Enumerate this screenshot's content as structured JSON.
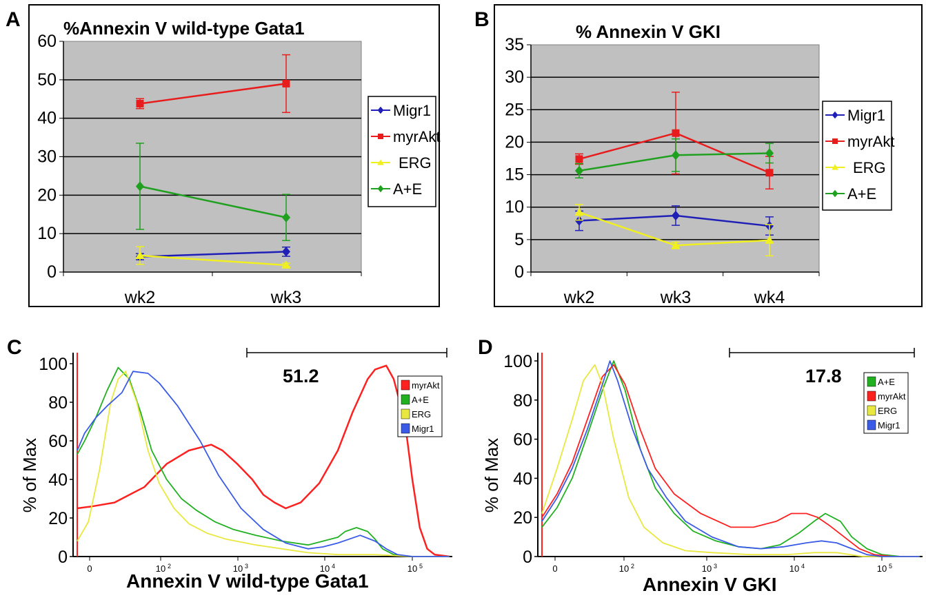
{
  "panel_labels": [
    "A",
    "B",
    "C",
    "D"
  ],
  "chart_data": [
    {
      "panel": "A",
      "type": "line",
      "title": "%Annexin V wild-type Gata1",
      "categories": [
        "wk2",
        "wk3"
      ],
      "ylim": [
        0,
        60
      ],
      "yticks": [
        "0",
        "10",
        "20",
        "30",
        "40",
        "50",
        "60"
      ],
      "grid": true,
      "plot_background": "#c0c0c0",
      "legend_position": "right",
      "series": [
        {
          "name": "Migr1",
          "color": "#1f1fb8",
          "marker": "diamond",
          "values": [
            4,
            5.3
          ],
          "err": [
            0.8,
            1.2
          ]
        },
        {
          "name": "myrAkt",
          "color": "#e81c1c",
          "marker": "square",
          "values": [
            43.8,
            49
          ],
          "err": [
            1.3,
            7.5
          ]
        },
        {
          "name": "ERG",
          "color": "#f0f020",
          "marker": "triangle",
          "values": [
            4.3,
            1.8
          ],
          "err": [
            2.3,
            0.5
          ]
        },
        {
          "name": "A+E",
          "color": "#1fa01f",
          "marker": "diamond",
          "values": [
            22.3,
            14.2
          ],
          "err": [
            11.2,
            6
          ]
        }
      ]
    },
    {
      "panel": "B",
      "type": "line",
      "title": "% Annexin V GKI",
      "categories": [
        "wk2",
        "wk3",
        "wk4"
      ],
      "ylim": [
        0,
        35
      ],
      "yticks": [
        "0",
        "5",
        "10",
        "15",
        "20",
        "25",
        "30",
        "35"
      ],
      "grid": true,
      "plot_background": "#c0c0c0",
      "legend_position": "right",
      "series": [
        {
          "name": "Migr1",
          "color": "#1f1fb8",
          "marker": "diamond",
          "values": [
            7.9,
            8.7,
            7.1
          ],
          "err": [
            1.5,
            1.5,
            1.4
          ]
        },
        {
          "name": "myrAkt",
          "color": "#e81c1c",
          "marker": "square",
          "values": [
            17.4,
            21.4,
            15.3
          ],
          "err": [
            0.8,
            6.3,
            2.5
          ]
        },
        {
          "name": "ERG",
          "color": "#f0f020",
          "marker": "triangle",
          "values": [
            9.2,
            4.1,
            4.9
          ],
          "err": [
            1.2,
            0.5,
            2.4
          ]
        },
        {
          "name": "A+E",
          "color": "#1fa01f",
          "marker": "diamond",
          "values": [
            15.6,
            18,
            18.3
          ],
          "err": [
            1.1,
            2.5,
            1.5
          ]
        }
      ]
    },
    {
      "panel": "C",
      "type": "area",
      "xlabel": "Annexin V wild-type Gata1",
      "ylabel": "% of Max",
      "ylim": [
        0,
        100
      ],
      "yticks": [
        "0",
        "20",
        "40",
        "60",
        "80",
        "100"
      ],
      "x_scale": "biexponential",
      "xticks": [
        {
          "base": "0",
          "exp": ""
        },
        {
          "base": "10",
          "exp": "2"
        },
        {
          "base": "10",
          "exp": "3"
        },
        {
          "base": "10",
          "exp": "4"
        },
        {
          "base": "10",
          "exp": "5"
        }
      ],
      "gate_value": "51.2",
      "legend_position": "top-right",
      "legend": [
        {
          "name": "myrAkt",
          "color": "#ff2020"
        },
        {
          "name": "A+E",
          "color": "#20b020"
        },
        {
          "name": "ERG",
          "color": "#e8e840"
        },
        {
          "name": "Migr1",
          "color": "#3a5ae8"
        }
      ],
      "series": [
        {
          "name": "myrAkt",
          "color": "#ff2020",
          "x": [
            0.0,
            0.04,
            0.1,
            0.14,
            0.18,
            0.2,
            0.24,
            0.3,
            0.36,
            0.39,
            0.43,
            0.47,
            0.5,
            0.53,
            0.56,
            0.6,
            0.65,
            0.7,
            0.74,
            0.78,
            0.8,
            0.83,
            0.85,
            0.88,
            0.9,
            0.92,
            0.94,
            0.96,
            1.0
          ],
          "y": [
            25,
            26,
            28,
            32,
            36,
            40,
            48,
            55,
            58,
            55,
            48,
            40,
            32,
            28,
            25,
            28,
            38,
            55,
            75,
            92,
            97,
            99,
            92,
            70,
            40,
            15,
            4,
            1,
            0
          ]
        },
        {
          "name": "A+E",
          "color": "#20b020",
          "x": [
            0.0,
            0.02,
            0.05,
            0.08,
            0.11,
            0.14,
            0.17,
            0.2,
            0.24,
            0.28,
            0.32,
            0.37,
            0.42,
            0.48,
            0.55,
            0.62,
            0.66,
            0.7,
            0.72,
            0.75,
            0.78,
            0.8,
            0.82,
            0.85,
            0.9,
            1.0
          ],
          "y": [
            53,
            60,
            72,
            86,
            98,
            92,
            75,
            55,
            40,
            30,
            24,
            18,
            14,
            11,
            8,
            6,
            8,
            10,
            13,
            15,
            13,
            9,
            4,
            1,
            0,
            0
          ]
        },
        {
          "name": "ERG",
          "color": "#e8e840",
          "x": [
            0.0,
            0.03,
            0.06,
            0.09,
            0.11,
            0.13,
            0.16,
            0.19,
            0.22,
            0.26,
            0.3,
            0.35,
            0.4,
            0.48,
            0.55,
            0.62,
            0.7,
            0.8,
            0.9,
            1.0
          ],
          "y": [
            8,
            18,
            45,
            80,
            92,
            96,
            80,
            55,
            38,
            25,
            17,
            12,
            9,
            6,
            4,
            2,
            1,
            1,
            0,
            0
          ]
        },
        {
          "name": "Migr1",
          "color": "#3a5ae8",
          "x": [
            0.0,
            0.02,
            0.05,
            0.08,
            0.12,
            0.15,
            0.19,
            0.22,
            0.27,
            0.33,
            0.38,
            0.44,
            0.5,
            0.56,
            0.62,
            0.66,
            0.7,
            0.73,
            0.76,
            0.8,
            0.83,
            0.86,
            0.9,
            1.0
          ],
          "y": [
            55,
            64,
            72,
            78,
            85,
            96,
            95,
            90,
            78,
            60,
            42,
            25,
            14,
            7,
            4,
            5,
            7,
            9,
            11,
            8,
            4,
            1,
            0,
            0
          ]
        }
      ]
    },
    {
      "panel": "D",
      "type": "area",
      "xlabel": "Annexin V GKI",
      "ylabel": "% of Max",
      "ylim": [
        0,
        100
      ],
      "yticks": [
        "0",
        "20",
        "40",
        "60",
        "80",
        "100"
      ],
      "x_scale": "biexponential",
      "xticks": [
        {
          "base": "0",
          "exp": ""
        },
        {
          "base": "10",
          "exp": "2"
        },
        {
          "base": "10",
          "exp": "3"
        },
        {
          "base": "10",
          "exp": "4"
        },
        {
          "base": "10",
          "exp": "5"
        }
      ],
      "gate_value": "17.8",
      "legend_position": "top-right",
      "legend": [
        {
          "name": "A+E",
          "color": "#20b020"
        },
        {
          "name": "myrAkt",
          "color": "#ff2020"
        },
        {
          "name": "ERG",
          "color": "#e8e840"
        },
        {
          "name": "Migr1",
          "color": "#3a5ae8"
        }
      ],
      "series": [
        {
          "name": "A+E",
          "color": "#20b020",
          "x": [
            0.0,
            0.04,
            0.08,
            0.12,
            0.16,
            0.19,
            0.22,
            0.26,
            0.3,
            0.35,
            0.4,
            0.46,
            0.52,
            0.58,
            0.63,
            0.68,
            0.72,
            0.75,
            0.79,
            0.82,
            0.86,
            0.9,
            0.95,
            1.0
          ],
          "y": [
            15,
            25,
            40,
            62,
            85,
            100,
            85,
            55,
            35,
            22,
            13,
            8,
            5,
            4,
            6,
            12,
            18,
            22,
            18,
            10,
            4,
            1,
            0,
            0
          ]
        },
        {
          "name": "myrAkt",
          "color": "#ff2020",
          "x": [
            0.0,
            0.04,
            0.08,
            0.12,
            0.16,
            0.19,
            0.22,
            0.26,
            0.3,
            0.35,
            0.42,
            0.5,
            0.56,
            0.62,
            0.66,
            0.7,
            0.73,
            0.76,
            0.8,
            0.84,
            0.88,
            0.93,
            1.0
          ],
          "y": [
            20,
            32,
            48,
            70,
            92,
            98,
            88,
            65,
            45,
            32,
            22,
            15,
            15,
            18,
            22,
            22,
            20,
            16,
            10,
            4,
            1,
            0,
            0
          ]
        },
        {
          "name": "ERG",
          "color": "#e8e840",
          "x": [
            0.0,
            0.04,
            0.08,
            0.11,
            0.14,
            0.16,
            0.19,
            0.23,
            0.27,
            0.32,
            0.38,
            0.45,
            0.55,
            0.65,
            0.72,
            0.78,
            0.85,
            1.0
          ],
          "y": [
            22,
            45,
            70,
            90,
            98,
            88,
            60,
            30,
            15,
            7,
            3,
            2,
            1,
            1,
            2,
            2,
            0,
            0
          ]
        },
        {
          "name": "Migr1",
          "color": "#3a5ae8",
          "x": [
            0.0,
            0.04,
            0.08,
            0.12,
            0.16,
            0.18,
            0.2,
            0.24,
            0.28,
            0.33,
            0.38,
            0.45,
            0.52,
            0.58,
            0.64,
            0.7,
            0.74,
            0.78,
            0.82,
            0.86,
            0.9,
            1.0
          ],
          "y": [
            18,
            30,
            45,
            65,
            88,
            100,
            90,
            65,
            45,
            30,
            18,
            10,
            5,
            4,
            5,
            7,
            8,
            7,
            4,
            1,
            0,
            0
          ]
        }
      ]
    }
  ]
}
